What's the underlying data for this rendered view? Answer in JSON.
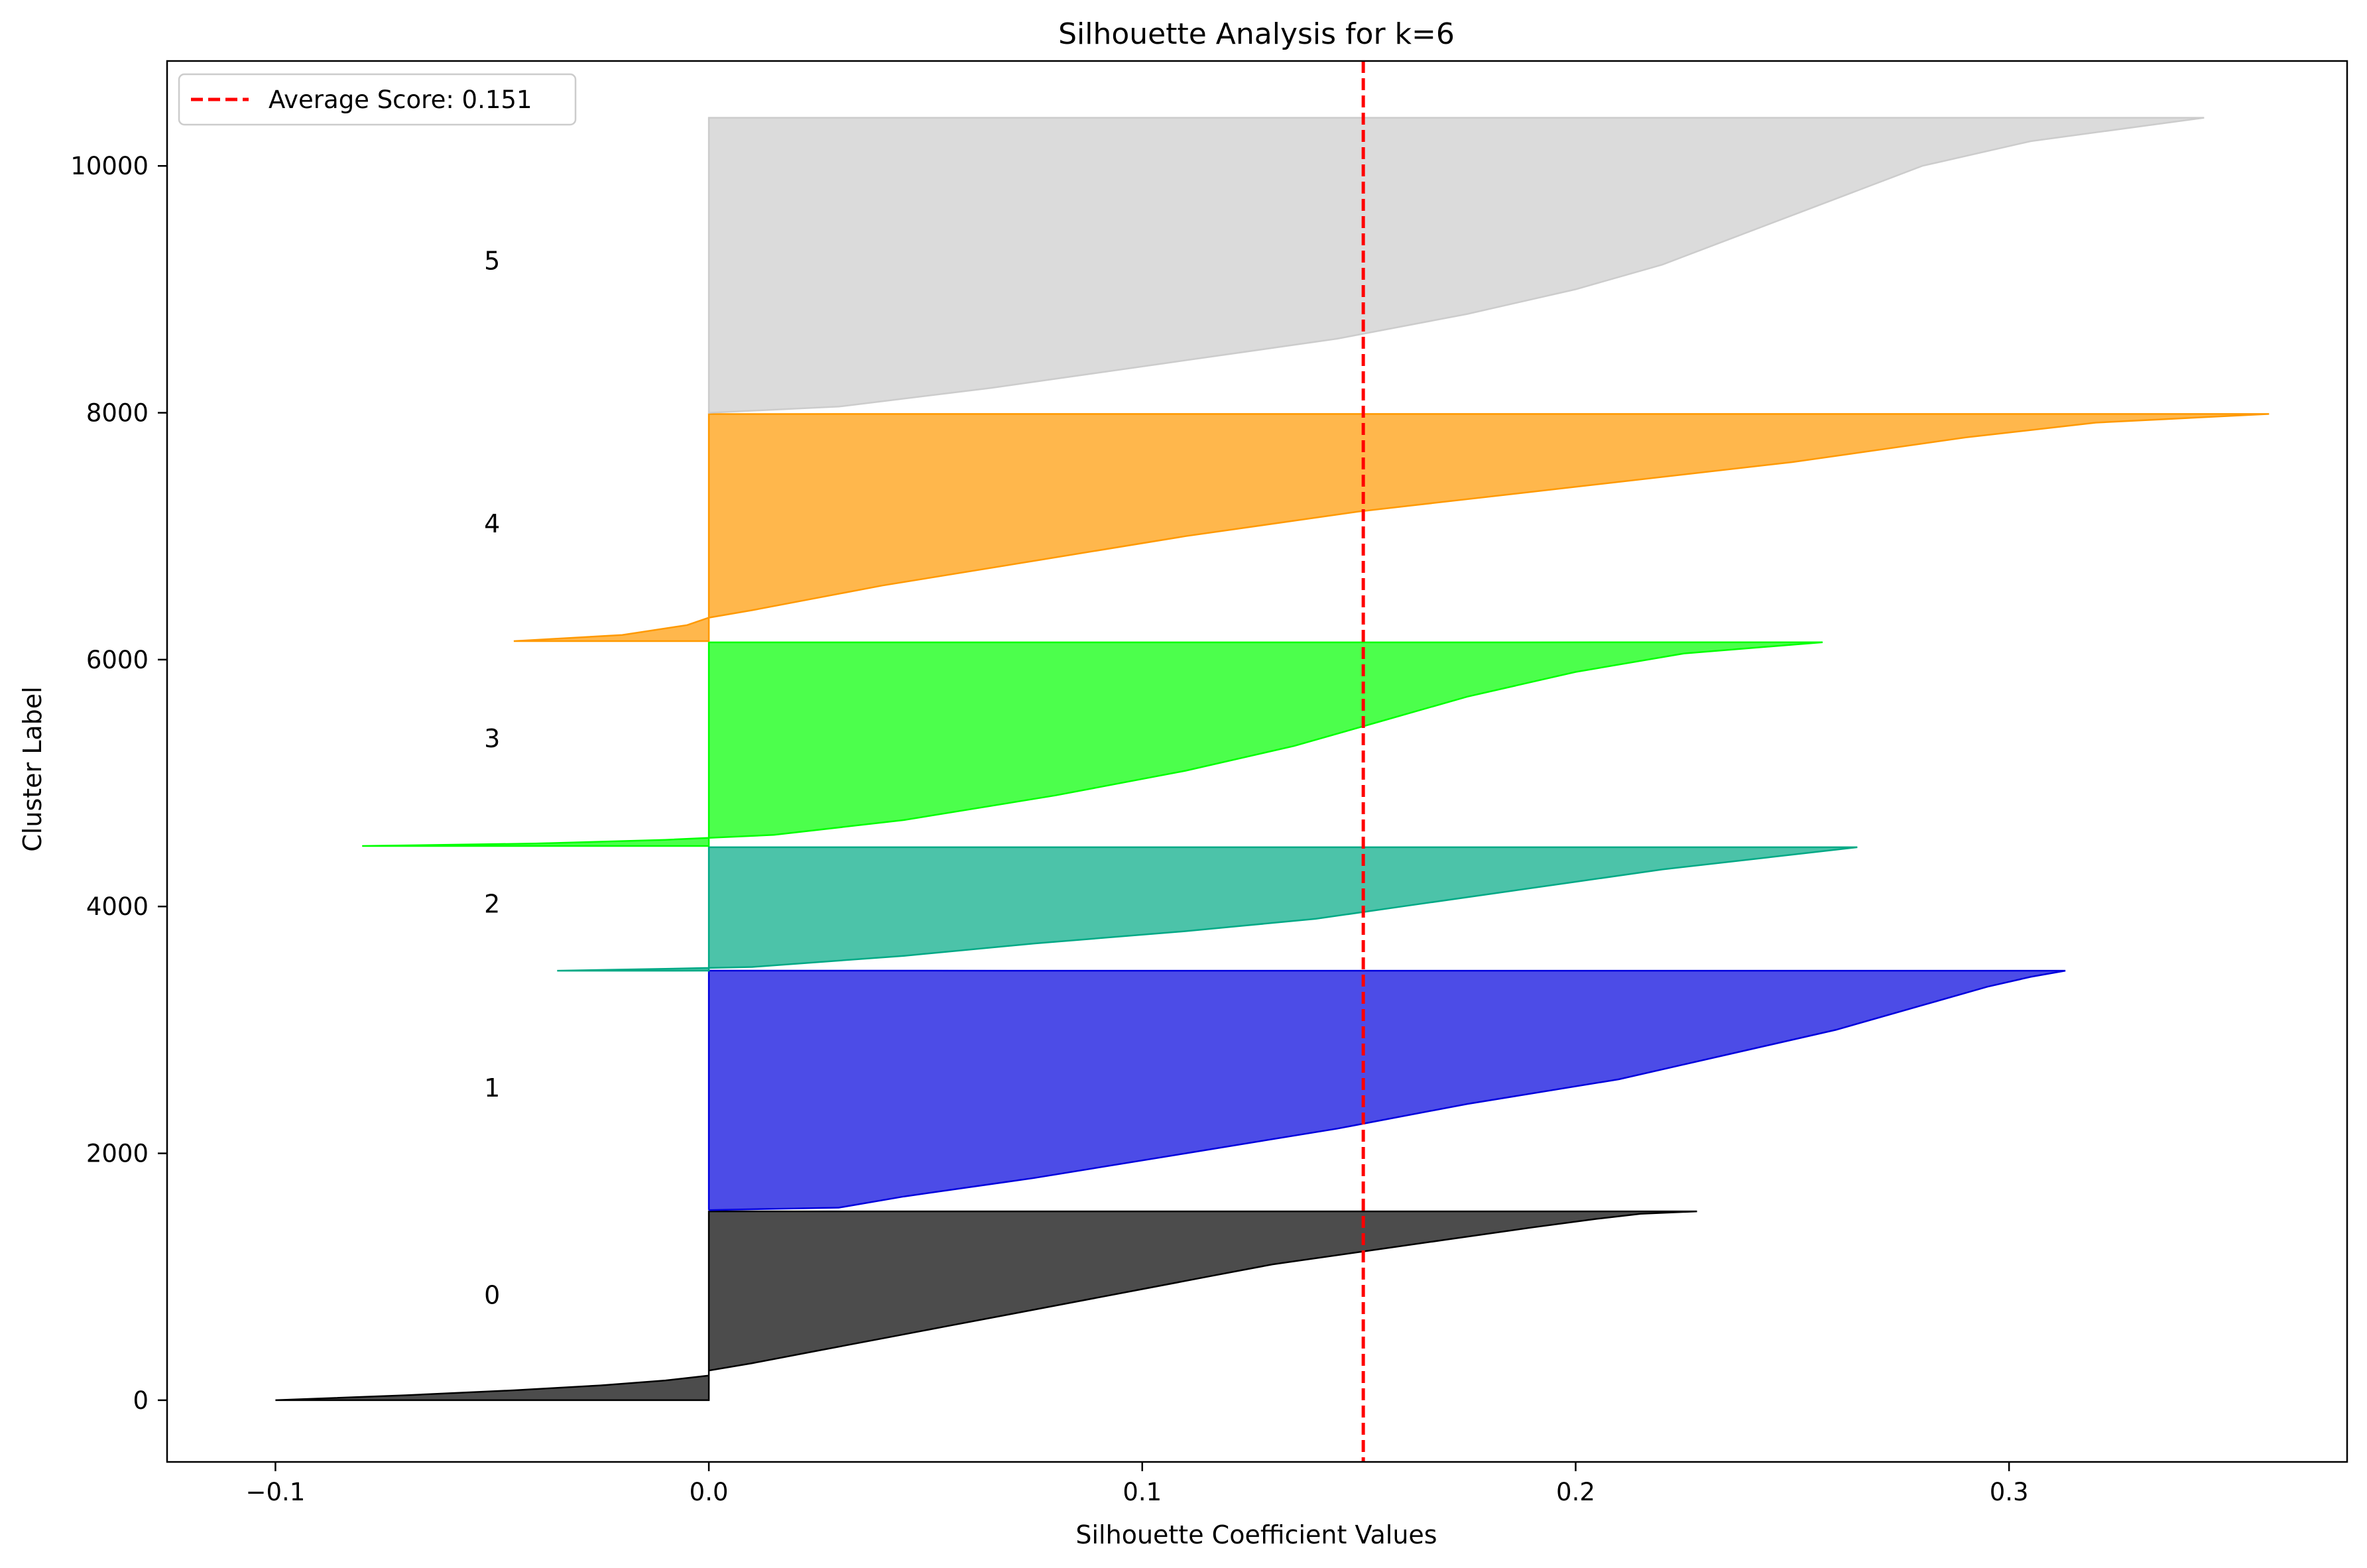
{
  "chart_data": {
    "type": "area",
    "title": "Silhouette Analysis for k=6",
    "xlabel": "Silhouette Coefficient Values",
    "ylabel": "Cluster Label",
    "xlim": [
      -0.125,
      0.378
    ],
    "ylim": [
      -500,
      10850
    ],
    "x_ticks": [
      -0.1,
      0.0,
      0.1,
      0.2,
      0.3
    ],
    "x_tick_labels": [
      "−0.1",
      "0.0",
      "0.1",
      "0.2",
      "0.3"
    ],
    "y_ticks": [
      0,
      2000,
      4000,
      6000,
      8000,
      10000
    ],
    "y_tick_labels": [
      "0",
      "2000",
      "4000",
      "6000",
      "8000",
      "10000"
    ],
    "grid": false,
    "legend": {
      "position": "top-left",
      "entries": [
        "Average Score: 0.151"
      ]
    },
    "average_line": {
      "x": 0.151,
      "color": "#ff0000",
      "style": "dashed"
    },
    "label_x": -0.05,
    "series": [
      {
        "name": "0",
        "color": "#000000",
        "label_y": 850,
        "y_start": 0,
        "y_end": 1530,
        "profile": [
          [
            0,
            -0.1
          ],
          [
            40,
            -0.07
          ],
          [
            80,
            -0.045
          ],
          [
            120,
            -0.025
          ],
          [
            160,
            -0.01
          ],
          [
            200,
            0.0
          ],
          [
            240,
            0.0
          ],
          [
            300,
            0.01
          ],
          [
            400,
            0.025
          ],
          [
            500,
            0.04
          ],
          [
            600,
            0.055
          ],
          [
            700,
            0.07
          ],
          [
            800,
            0.085
          ],
          [
            900,
            0.1
          ],
          [
            1000,
            0.115
          ],
          [
            1100,
            0.13
          ],
          [
            1200,
            0.15
          ],
          [
            1300,
            0.17
          ],
          [
            1400,
            0.19
          ],
          [
            1470,
            0.205
          ],
          [
            1510,
            0.215
          ],
          [
            1530,
            0.228
          ]
        ]
      },
      {
        "name": "1",
        "color": "#0000dd",
        "label_y": 2530,
        "y_start": 1540,
        "y_end": 3480,
        "profile": [
          [
            1540,
            0.0
          ],
          [
            1560,
            0.03
          ],
          [
            1650,
            0.045
          ],
          [
            1800,
            0.075
          ],
          [
            2000,
            0.11
          ],
          [
            2200,
            0.145
          ],
          [
            2400,
            0.175
          ],
          [
            2600,
            0.21
          ],
          [
            2800,
            0.235
          ],
          [
            3000,
            0.26
          ],
          [
            3200,
            0.28
          ],
          [
            3350,
            0.295
          ],
          [
            3430,
            0.305
          ],
          [
            3480,
            0.313
          ]
        ]
      },
      {
        "name": "2",
        "color": "#00a985",
        "label_y": 4020,
        "y_start": 3480,
        "y_end": 4480,
        "profile": [
          [
            3480,
            -0.035
          ],
          [
            3495,
            -0.01
          ],
          [
            3510,
            0.01
          ],
          [
            3600,
            0.045
          ],
          [
            3700,
            0.075
          ],
          [
            3800,
            0.11
          ],
          [
            3900,
            0.14
          ],
          [
            4000,
            0.16
          ],
          [
            4100,
            0.18
          ],
          [
            4200,
            0.2
          ],
          [
            4300,
            0.22
          ],
          [
            4400,
            0.245
          ],
          [
            4480,
            0.265
          ]
        ]
      },
      {
        "name": "3",
        "color": "#00ff00",
        "label_y": 5360,
        "y_start": 4490,
        "y_end": 6140,
        "profile": [
          [
            4490,
            -0.08
          ],
          [
            4510,
            -0.04
          ],
          [
            4540,
            -0.01
          ],
          [
            4580,
            0.015
          ],
          [
            4700,
            0.045
          ],
          [
            4900,
            0.08
          ],
          [
            5100,
            0.11
          ],
          [
            5300,
            0.135
          ],
          [
            5500,
            0.155
          ],
          [
            5700,
            0.175
          ],
          [
            5900,
            0.2
          ],
          [
            6050,
            0.225
          ],
          [
            6140,
            0.257
          ]
        ]
      },
      {
        "name": "4",
        "color": "#ff9900",
        "label_y": 7100,
        "y_start": 6150,
        "y_end": 7990,
        "profile": [
          [
            6150,
            -0.045
          ],
          [
            6200,
            -0.02
          ],
          [
            6280,
            -0.005
          ],
          [
            6340,
            0.0
          ],
          [
            6400,
            0.01
          ],
          [
            6600,
            0.04
          ],
          [
            6800,
            0.075
          ],
          [
            7000,
            0.11
          ],
          [
            7200,
            0.15
          ],
          [
            7400,
            0.2
          ],
          [
            7600,
            0.25
          ],
          [
            7800,
            0.29
          ],
          [
            7920,
            0.32
          ],
          [
            7990,
            0.36
          ]
        ]
      },
      {
        "name": "5",
        "color": "#cccccc",
        "label_y": 9230,
        "y_start": 8000,
        "y_end": 10390,
        "profile": [
          [
            8000,
            0.0
          ],
          [
            8050,
            0.03
          ],
          [
            8200,
            0.065
          ],
          [
            8400,
            0.105
          ],
          [
            8600,
            0.145
          ],
          [
            8800,
            0.175
          ],
          [
            9000,
            0.2
          ],
          [
            9200,
            0.22
          ],
          [
            9400,
            0.235
          ],
          [
            9600,
            0.25
          ],
          [
            9800,
            0.265
          ],
          [
            10000,
            0.28
          ],
          [
            10200,
            0.305
          ],
          [
            10390,
            0.345
          ]
        ]
      }
    ]
  }
}
